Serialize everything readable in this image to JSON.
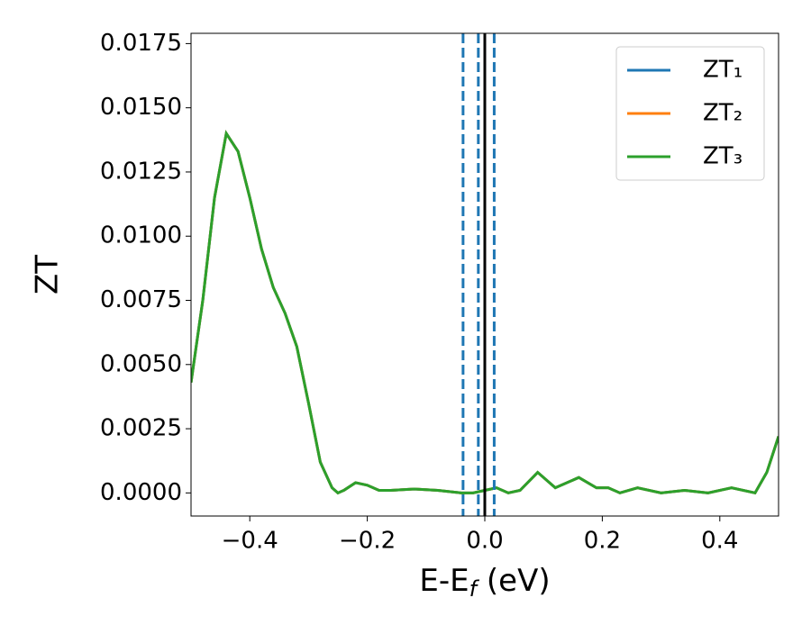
{
  "chart_data": {
    "type": "line",
    "xlabel": [
      "E-E",
      "f",
      " (eV)"
    ],
    "ylabel": "ZT",
    "x": [
      -0.5,
      -0.48,
      -0.46,
      -0.44,
      -0.42,
      -0.4,
      -0.38,
      -0.36,
      -0.34,
      -0.32,
      -0.3,
      -0.28,
      -0.26,
      -0.25,
      -0.24,
      -0.22,
      -0.2,
      -0.18,
      -0.16,
      -0.12,
      -0.08,
      -0.04,
      -0.02,
      0.0,
      0.02,
      0.04,
      0.06,
      0.09,
      0.12,
      0.16,
      0.19,
      0.21,
      0.23,
      0.26,
      0.3,
      0.34,
      0.38,
      0.42,
      0.46,
      0.48,
      0.5
    ],
    "series": [
      {
        "name": "ZT₁",
        "color": "#1f77b4",
        "values": [
          0.0043,
          0.0075,
          0.0115,
          0.014,
          0.0133,
          0.0115,
          0.0095,
          0.008,
          0.007,
          0.0057,
          0.0035,
          0.0012,
          0.0002,
          0.0,
          0.0001,
          0.0004,
          0.0003,
          0.0001,
          0.0001,
          0.00015,
          0.0001,
          0.0,
          0.0,
          0.0001,
          0.0002,
          0.0,
          0.0001,
          0.0008,
          0.0002,
          0.0006,
          0.0002,
          0.0002,
          0.0,
          0.0002,
          0.0,
          0.0001,
          0.0,
          0.0002,
          0.0,
          0.0008,
          0.0022
        ]
      },
      {
        "name": "ZT₂",
        "color": "#ff7f0e",
        "values": [
          0.0043,
          0.0075,
          0.0115,
          0.014,
          0.0133,
          0.0115,
          0.0095,
          0.008,
          0.007,
          0.0057,
          0.0035,
          0.0012,
          0.0002,
          0.0,
          0.0001,
          0.0004,
          0.0003,
          0.0001,
          0.0001,
          0.00015,
          0.0001,
          0.0,
          0.0,
          0.0001,
          0.0002,
          0.0,
          0.0001,
          0.0008,
          0.0002,
          0.0006,
          0.0002,
          0.0002,
          0.0,
          0.0002,
          0.0,
          0.0001,
          0.0,
          0.0002,
          0.0,
          0.0008,
          0.0022
        ]
      },
      {
        "name": "ZT₃",
        "color": "#2ca02c",
        "values": [
          0.0043,
          0.0075,
          0.0115,
          0.014,
          0.0133,
          0.0115,
          0.0095,
          0.008,
          0.007,
          0.0057,
          0.0035,
          0.0012,
          0.0002,
          0.0,
          0.0001,
          0.0004,
          0.0003,
          0.0001,
          0.0001,
          0.00015,
          0.0001,
          0.0,
          0.0,
          0.0001,
          0.0002,
          0.0,
          0.0001,
          0.0008,
          0.0002,
          0.0006,
          0.0002,
          0.0002,
          0.0,
          0.0002,
          0.0,
          0.0001,
          0.0,
          0.0002,
          0.0,
          0.0008,
          0.0022
        ]
      }
    ],
    "vlines": [
      {
        "x": -0.037,
        "color": "#1f77b4",
        "style": "dashed"
      },
      {
        "x": -0.011,
        "color": "#1f77b4",
        "style": "dashed"
      },
      {
        "x": 0.016,
        "color": "#1f77b4",
        "style": "dashed"
      },
      {
        "x": 0,
        "color": "#000000",
        "style": "solid"
      }
    ],
    "xlim": [
      -0.5,
      0.5
    ],
    "xticks": [
      {
        "value": -0.4,
        "label": "−0.4"
      },
      {
        "value": -0.2,
        "label": "−0.2"
      },
      {
        "value": 0,
        "label": "0.0"
      },
      0.2,
      0.4
    ],
    "ylim": [
      -0.0009,
      0.0179
    ],
    "yticks": [
      {
        "value": 0,
        "label": "0.0000"
      },
      0.0025,
      {
        "value": 0.005,
        "label": "0.0050"
      },
      0.0075,
      {
        "value": 0.01,
        "label": "0.0100"
      },
      0.0125,
      {
        "value": 0.015,
        "label": "0.0150"
      },
      0.0175
    ],
    "legend": "upper right",
    "grid": false
  }
}
